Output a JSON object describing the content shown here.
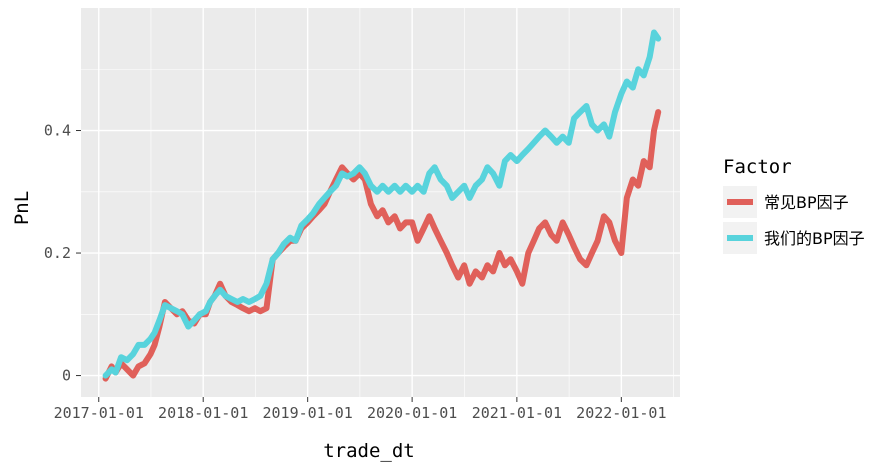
{
  "chart_data": {
    "type": "line",
    "xlabel": "trade_dt",
    "ylabel": "PnL",
    "x_ticks": [
      "2017-01-01",
      "2018-01-01",
      "2019-01-01",
      "2020-01-01",
      "2021-01-01",
      "2022-01-01"
    ],
    "y_ticks": [
      "0",
      "0.2",
      "0.4"
    ],
    "y_tick_values": [
      0,
      0.2,
      0.4
    ],
    "xlim": [
      "2016-10-31",
      "2022-07-25"
    ],
    "ylim": [
      -0.035,
      0.6
    ],
    "grid": true,
    "legend_placement": "right",
    "legend_title": "Factor",
    "series": [
      {
        "name": "常见BP因子",
        "color": "#E0605A",
        "x": [
          "2017-01-25",
          "2017-02-15",
          "2017-03-01",
          "2017-03-20",
          "2017-04-10",
          "2017-05-01",
          "2017-05-20",
          "2017-06-10",
          "2017-07-01",
          "2017-07-15",
          "2017-08-01",
          "2017-08-20",
          "2017-09-10",
          "2017-10-01",
          "2017-10-20",
          "2017-11-10",
          "2017-12-01",
          "2017-12-20",
          "2018-01-10",
          "2018-01-25",
          "2018-02-10",
          "2018-03-01",
          "2018-03-20",
          "2018-04-10",
          "2018-05-01",
          "2018-05-20",
          "2018-06-10",
          "2018-07-01",
          "2018-07-20",
          "2018-08-10",
          "2018-09-01",
          "2018-09-20",
          "2018-10-10",
          "2018-11-01",
          "2018-11-20",
          "2018-12-10",
          "2019-01-01",
          "2019-01-20",
          "2019-02-10",
          "2019-03-01",
          "2019-03-20",
          "2019-04-10",
          "2019-05-01",
          "2019-05-20",
          "2019-06-10",
          "2019-07-01",
          "2019-07-20",
          "2019-08-10",
          "2019-09-01",
          "2019-09-20",
          "2019-10-10",
          "2019-11-01",
          "2019-11-20",
          "2019-12-10",
          "2020-01-01",
          "2020-01-20",
          "2020-02-10",
          "2020-03-01",
          "2020-03-20",
          "2020-04-10",
          "2020-05-01",
          "2020-05-20",
          "2020-06-10",
          "2020-07-01",
          "2020-07-20",
          "2020-08-10",
          "2020-09-01",
          "2020-09-20",
          "2020-10-10",
          "2020-11-01",
          "2020-11-20",
          "2020-12-10",
          "2021-01-01",
          "2021-01-20",
          "2021-02-10",
          "2021-03-01",
          "2021-03-20",
          "2021-04-10",
          "2021-05-01",
          "2021-05-20",
          "2021-06-10",
          "2021-07-01",
          "2021-07-20",
          "2021-08-10",
          "2021-09-01",
          "2021-09-20",
          "2021-10-10",
          "2021-11-01",
          "2021-11-20",
          "2021-12-10",
          "2022-01-01",
          "2022-01-20",
          "2022-02-10",
          "2022-03-01",
          "2022-03-20",
          "2022-04-10",
          "2022-04-25",
          "2022-05-10"
        ],
        "values": [
          -0.005,
          0.015,
          0.005,
          0.02,
          0.01,
          0.0,
          0.015,
          0.02,
          0.035,
          0.05,
          0.08,
          0.12,
          0.11,
          0.1,
          0.105,
          0.09,
          0.085,
          0.1,
          0.1,
          0.12,
          0.13,
          0.15,
          0.13,
          0.12,
          0.115,
          0.11,
          0.105,
          0.11,
          0.105,
          0.11,
          0.19,
          0.2,
          0.21,
          0.22,
          0.22,
          0.24,
          0.25,
          0.26,
          0.27,
          0.28,
          0.3,
          0.32,
          0.34,
          0.33,
          0.32,
          0.33,
          0.32,
          0.28,
          0.26,
          0.27,
          0.25,
          0.26,
          0.24,
          0.25,
          0.25,
          0.22,
          0.24,
          0.26,
          0.24,
          0.22,
          0.2,
          0.18,
          0.16,
          0.18,
          0.15,
          0.17,
          0.16,
          0.18,
          0.17,
          0.2,
          0.18,
          0.19,
          0.17,
          0.15,
          0.2,
          0.22,
          0.24,
          0.25,
          0.23,
          0.22,
          0.25,
          0.23,
          0.21,
          0.19,
          0.18,
          0.2,
          0.22,
          0.26,
          0.25,
          0.22,
          0.2,
          0.29,
          0.32,
          0.31,
          0.35,
          0.34,
          0.4,
          0.43
        ]
      },
      {
        "name": "我们的BP因子",
        "color": "#58D3DC",
        "x": [
          "2017-01-25",
          "2017-02-15",
          "2017-03-01",
          "2017-03-20",
          "2017-04-10",
          "2017-05-01",
          "2017-05-20",
          "2017-06-10",
          "2017-07-01",
          "2017-07-15",
          "2017-08-01",
          "2017-08-20",
          "2017-09-10",
          "2017-10-01",
          "2017-10-20",
          "2017-11-10",
          "2017-12-01",
          "2017-12-20",
          "2018-01-10",
          "2018-01-25",
          "2018-02-10",
          "2018-03-01",
          "2018-03-20",
          "2018-04-10",
          "2018-05-01",
          "2018-05-20",
          "2018-06-10",
          "2018-07-01",
          "2018-07-20",
          "2018-08-10",
          "2018-09-01",
          "2018-09-20",
          "2018-10-10",
          "2018-11-01",
          "2018-11-20",
          "2018-12-10",
          "2019-01-01",
          "2019-01-20",
          "2019-02-10",
          "2019-03-01",
          "2019-03-20",
          "2019-04-10",
          "2019-05-01",
          "2019-05-20",
          "2019-06-10",
          "2019-07-01",
          "2019-07-20",
          "2019-08-10",
          "2019-09-01",
          "2019-09-20",
          "2019-10-10",
          "2019-11-01",
          "2019-11-20",
          "2019-12-10",
          "2020-01-01",
          "2020-01-20",
          "2020-02-10",
          "2020-03-01",
          "2020-03-20",
          "2020-04-10",
          "2020-05-01",
          "2020-05-20",
          "2020-06-10",
          "2020-07-01",
          "2020-07-20",
          "2020-08-10",
          "2020-09-01",
          "2020-09-20",
          "2020-10-10",
          "2020-11-01",
          "2020-11-20",
          "2020-12-10",
          "2021-01-01",
          "2021-01-20",
          "2021-02-10",
          "2021-03-01",
          "2021-03-20",
          "2021-04-10",
          "2021-05-01",
          "2021-05-20",
          "2021-06-10",
          "2021-07-01",
          "2021-07-20",
          "2021-08-10",
          "2021-09-01",
          "2021-09-20",
          "2021-10-10",
          "2021-11-01",
          "2021-11-20",
          "2021-12-10",
          "2022-01-01",
          "2022-01-20",
          "2022-02-10",
          "2022-03-01",
          "2022-03-20",
          "2022-04-10",
          "2022-04-25",
          "2022-05-10"
        ],
        "values": [
          0.0,
          0.01,
          0.005,
          0.03,
          0.025,
          0.035,
          0.05,
          0.05,
          0.06,
          0.07,
          0.09,
          0.115,
          0.11,
          0.105,
          0.1,
          0.08,
          0.09,
          0.1,
          0.105,
          0.12,
          0.13,
          0.14,
          0.13,
          0.125,
          0.12,
          0.125,
          0.12,
          0.125,
          0.13,
          0.15,
          0.19,
          0.2,
          0.215,
          0.225,
          0.22,
          0.245,
          0.255,
          0.265,
          0.28,
          0.29,
          0.3,
          0.31,
          0.33,
          0.325,
          0.33,
          0.34,
          0.33,
          0.31,
          0.3,
          0.31,
          0.3,
          0.31,
          0.3,
          0.31,
          0.3,
          0.31,
          0.3,
          0.33,
          0.34,
          0.32,
          0.31,
          0.29,
          0.3,
          0.31,
          0.29,
          0.31,
          0.32,
          0.34,
          0.33,
          0.31,
          0.35,
          0.36,
          0.35,
          0.36,
          0.37,
          0.38,
          0.39,
          0.4,
          0.39,
          0.38,
          0.39,
          0.38,
          0.42,
          0.43,
          0.44,
          0.41,
          0.4,
          0.41,
          0.39,
          0.43,
          0.46,
          0.48,
          0.47,
          0.5,
          0.49,
          0.52,
          0.56,
          0.55
        ]
      }
    ]
  }
}
